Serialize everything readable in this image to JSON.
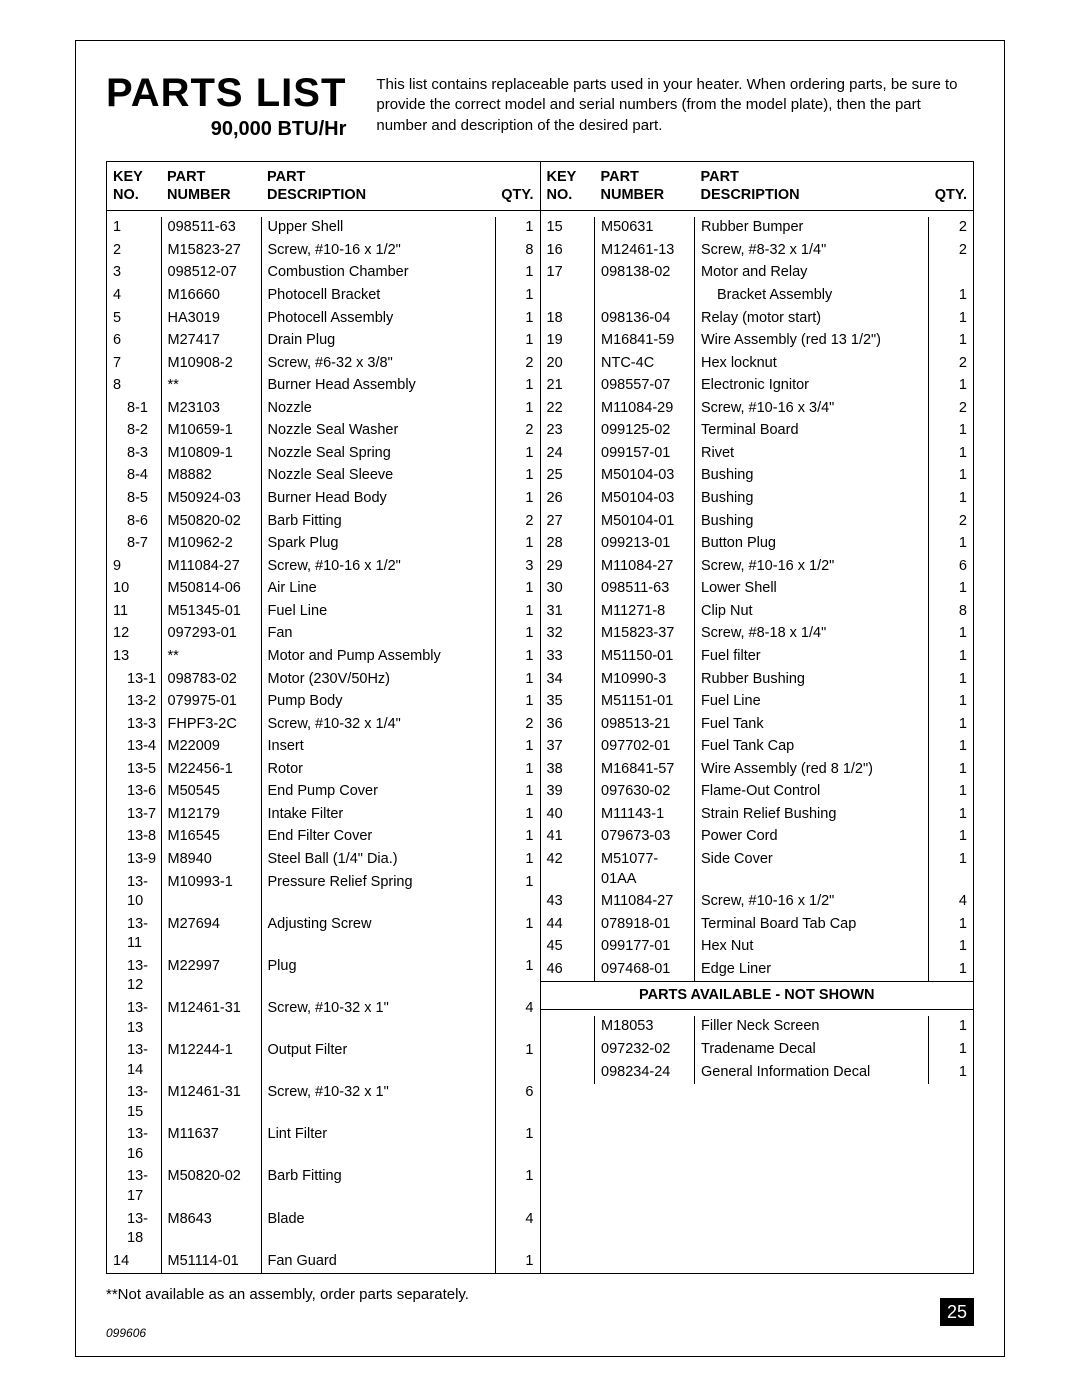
{
  "page": {
    "title": "PARTS LIST",
    "subtitle": "90,000 BTU/Hr",
    "intro": "This list contains replaceable parts used in your heater. When ordering parts, be sure to provide the correct model and serial numbers (from the model plate), then the part number and description of the desired part.",
    "footnote": "**Not available as an assembly, order parts separately.",
    "page_number": "25",
    "doc_id": "099606"
  },
  "headers": {
    "key1": "KEY",
    "key2": "NO.",
    "part1": "PART",
    "part2": "NUMBER",
    "desc1": "PART",
    "desc2": "DESCRIPTION",
    "qty": "QTY."
  },
  "section_title": "PARTS AVAILABLE - NOT SHOWN",
  "left": [
    {
      "key": "1",
      "sub": false,
      "num": "098511-63",
      "desc": "Upper Shell",
      "qty": "1"
    },
    {
      "key": "2",
      "sub": false,
      "num": "M15823-27",
      "desc": "Screw, #10-16 x 1/2\"",
      "qty": "8"
    },
    {
      "key": "3",
      "sub": false,
      "num": "098512-07",
      "desc": "Combustion Chamber",
      "qty": "1"
    },
    {
      "key": "4",
      "sub": false,
      "num": "M16660",
      "desc": "Photocell Bracket",
      "qty": "1"
    },
    {
      "key": "5",
      "sub": false,
      "num": "HA3019",
      "desc": "Photocell Assembly",
      "qty": "1"
    },
    {
      "key": "6",
      "sub": false,
      "num": "M27417",
      "desc": "Drain Plug",
      "qty": "1"
    },
    {
      "key": "7",
      "sub": false,
      "num": "M10908-2",
      "desc": "Screw, #6-32 x 3/8\"",
      "qty": "2"
    },
    {
      "key": "8",
      "sub": false,
      "num": "**",
      "desc": "Burner Head Assembly",
      "qty": "1"
    },
    {
      "key": "8-1",
      "sub": true,
      "num": "M23103",
      "desc": "Nozzle",
      "qty": "1"
    },
    {
      "key": "8-2",
      "sub": true,
      "num": "M10659-1",
      "desc": "Nozzle Seal Washer",
      "qty": "2"
    },
    {
      "key": "8-3",
      "sub": true,
      "num": "M10809-1",
      "desc": "Nozzle Seal Spring",
      "qty": "1"
    },
    {
      "key": "8-4",
      "sub": true,
      "num": "M8882",
      "desc": "Nozzle Seal Sleeve",
      "qty": "1"
    },
    {
      "key": "8-5",
      "sub": true,
      "num": "M50924-03",
      "desc": "Burner Head Body",
      "qty": "1"
    },
    {
      "key": "8-6",
      "sub": true,
      "num": "M50820-02",
      "desc": "Barb Fitting",
      "qty": "2"
    },
    {
      "key": "8-7",
      "sub": true,
      "num": "M10962-2",
      "desc": "Spark Plug",
      "qty": "1"
    },
    {
      "key": "9",
      "sub": false,
      "num": "M11084-27",
      "desc": "Screw, #10-16 x 1/2\"",
      "qty": "3"
    },
    {
      "key": "10",
      "sub": false,
      "num": "M50814-06",
      "desc": "Air Line",
      "qty": "1"
    },
    {
      "key": "11",
      "sub": false,
      "num": "M51345-01",
      "desc": "Fuel Line",
      "qty": "1"
    },
    {
      "key": "12",
      "sub": false,
      "num": "097293-01",
      "desc": "Fan",
      "qty": "1"
    },
    {
      "key": "13",
      "sub": false,
      "num": "**",
      "desc": "Motor and Pump Assembly",
      "qty": "1"
    },
    {
      "key": "13-1",
      "sub": true,
      "num": "098783-02",
      "desc": "Motor (230V/50Hz)",
      "qty": "1"
    },
    {
      "key": "13-2",
      "sub": true,
      "num": "079975-01",
      "desc": "Pump Body",
      "qty": "1"
    },
    {
      "key": "13-3",
      "sub": true,
      "num": "FHPF3-2C",
      "desc": "Screw, #10-32 x 1/4\"",
      "qty": "2"
    },
    {
      "key": "13-4",
      "sub": true,
      "num": "M22009",
      "desc": "Insert",
      "qty": "1"
    },
    {
      "key": "13-5",
      "sub": true,
      "num": "M22456-1",
      "desc": "Rotor",
      "qty": "1"
    },
    {
      "key": "13-6",
      "sub": true,
      "num": "M50545",
      "desc": "End Pump Cover",
      "qty": "1"
    },
    {
      "key": "13-7",
      "sub": true,
      "num": "M12179",
      "desc": "Intake Filter",
      "qty": "1"
    },
    {
      "key": "13-8",
      "sub": true,
      "num": "M16545",
      "desc": "End Filter Cover",
      "qty": "1"
    },
    {
      "key": "13-9",
      "sub": true,
      "num": "M8940",
      "desc": "Steel Ball (1/4\" Dia.)",
      "qty": "1"
    },
    {
      "key": "13-10",
      "sub": true,
      "num": "M10993-1",
      "desc": "Pressure Relief Spring",
      "qty": "1"
    },
    {
      "key": "13-11",
      "sub": true,
      "num": "M27694",
      "desc": "Adjusting Screw",
      "qty": "1"
    },
    {
      "key": "13-12",
      "sub": true,
      "num": "M22997",
      "desc": "Plug",
      "qty": "1"
    },
    {
      "key": "13-13",
      "sub": true,
      "num": "M12461-31",
      "desc": "Screw, #10-32 x 1\"",
      "qty": "4"
    },
    {
      "key": "13-14",
      "sub": true,
      "num": "M12244-1",
      "desc": "Output Filter",
      "qty": "1"
    },
    {
      "key": "13-15",
      "sub": true,
      "num": "M12461-31",
      "desc": "Screw, #10-32 x 1\"",
      "qty": "6"
    },
    {
      "key": "13-16",
      "sub": true,
      "num": "M11637",
      "desc": "Lint Filter",
      "qty": "1"
    },
    {
      "key": "13-17",
      "sub": true,
      "num": "M50820-02",
      "desc": "Barb Fitting",
      "qty": "1"
    },
    {
      "key": "13-18",
      "sub": true,
      "num": "M8643",
      "desc": "Blade",
      "qty": "4"
    },
    {
      "key": "14",
      "sub": false,
      "num": "M51114-01",
      "desc": "Fan Guard",
      "qty": "1"
    }
  ],
  "right": [
    {
      "key": "15",
      "num": "M50631",
      "desc": "Rubber Bumper",
      "qty": "2"
    },
    {
      "key": "16",
      "num": "M12461-13",
      "desc": "Screw, #8-32 x 1/4\"",
      "qty": "2"
    },
    {
      "key": "17",
      "num": "098138-02",
      "desc": "Motor and Relay",
      "qty": ""
    },
    {
      "key": "",
      "num": "",
      "desc": "Bracket Assembly",
      "indent": true,
      "qty": "1"
    },
    {
      "key": "18",
      "num": "098136-04",
      "desc": "Relay (motor start)",
      "qty": "1"
    },
    {
      "key": "19",
      "num": "M16841-59",
      "desc": "Wire Assembly (red 13 1/2\")",
      "qty": "1"
    },
    {
      "key": "20",
      "num": "NTC-4C",
      "desc": "Hex locknut",
      "qty": "2"
    },
    {
      "key": "21",
      "num": "098557-07",
      "desc": "Electronic Ignitor",
      "qty": "1"
    },
    {
      "key": "22",
      "num": "M11084-29",
      "desc": "Screw, #10-16 x 3/4\"",
      "qty": "2"
    },
    {
      "key": "23",
      "num": "099125-02",
      "desc": "Terminal Board",
      "qty": "1"
    },
    {
      "key": "24",
      "num": "099157-01",
      "desc": "Rivet",
      "qty": "1"
    },
    {
      "key": "25",
      "num": "M50104-03",
      "desc": "Bushing",
      "qty": "1"
    },
    {
      "key": "26",
      "num": "M50104-03",
      "desc": "Bushing",
      "qty": "1"
    },
    {
      "key": "27",
      "num": "M50104-01",
      "desc": "Bushing",
      "qty": "2"
    },
    {
      "key": "28",
      "num": "099213-01",
      "desc": "Button Plug",
      "qty": "1"
    },
    {
      "key": "29",
      "num": "M11084-27",
      "desc": "Screw, #10-16 x 1/2\"",
      "qty": "6"
    },
    {
      "key": "30",
      "num": "098511-63",
      "desc": "Lower Shell",
      "qty": "1"
    },
    {
      "key": "31",
      "num": "M11271-8",
      "desc": "Clip Nut",
      "qty": "8"
    },
    {
      "key": "32",
      "num": "M15823-37",
      "desc": "Screw, #8-18 x 1/4\"",
      "qty": "1"
    },
    {
      "key": "33",
      "num": "M51150-01",
      "desc": "Fuel filter",
      "qty": "1"
    },
    {
      "key": "34",
      "num": "M10990-3",
      "desc": "Rubber Bushing",
      "qty": "1"
    },
    {
      "key": "35",
      "num": "M51151-01",
      "desc": "Fuel Line",
      "qty": "1"
    },
    {
      "key": "36",
      "num": "098513-21",
      "desc": "Fuel Tank",
      "qty": "1"
    },
    {
      "key": "37",
      "num": "097702-01",
      "desc": "Fuel Tank Cap",
      "qty": "1"
    },
    {
      "key": "38",
      "num": "M16841-57",
      "desc": "Wire Assembly (red 8 1/2\")",
      "qty": "1"
    },
    {
      "key": "39",
      "num": "097630-02",
      "desc": "Flame-Out Control",
      "qty": "1"
    },
    {
      "key": "40",
      "num": "M11143-1",
      "desc": "Strain Relief Bushing",
      "qty": "1"
    },
    {
      "key": "41",
      "num": "079673-03",
      "desc": "Power Cord",
      "qty": "1"
    },
    {
      "key": "42",
      "num": "M51077-01AA",
      "desc": "Side Cover",
      "qty": "1"
    },
    {
      "key": "43",
      "num": "M11084-27",
      "desc": "Screw, #10-16 x 1/2\"",
      "qty": "4"
    },
    {
      "key": "44",
      "num": "078918-01",
      "desc": "Terminal Board Tab Cap",
      "qty": "1"
    },
    {
      "key": "45",
      "num": "099177-01",
      "desc": "Hex Nut",
      "qty": "1"
    },
    {
      "key": "46",
      "num": "097468-01",
      "desc": "Edge Liner",
      "qty": "1"
    }
  ],
  "not_shown": [
    {
      "key": "",
      "num": "M18053",
      "desc": "Filler Neck Screen",
      "qty": "1"
    },
    {
      "key": "",
      "num": "097232-02",
      "desc": "Tradename Decal",
      "qty": "1"
    },
    {
      "key": "",
      "num": "098234-24",
      "desc": "General Information Decal",
      "qty": "1"
    }
  ]
}
